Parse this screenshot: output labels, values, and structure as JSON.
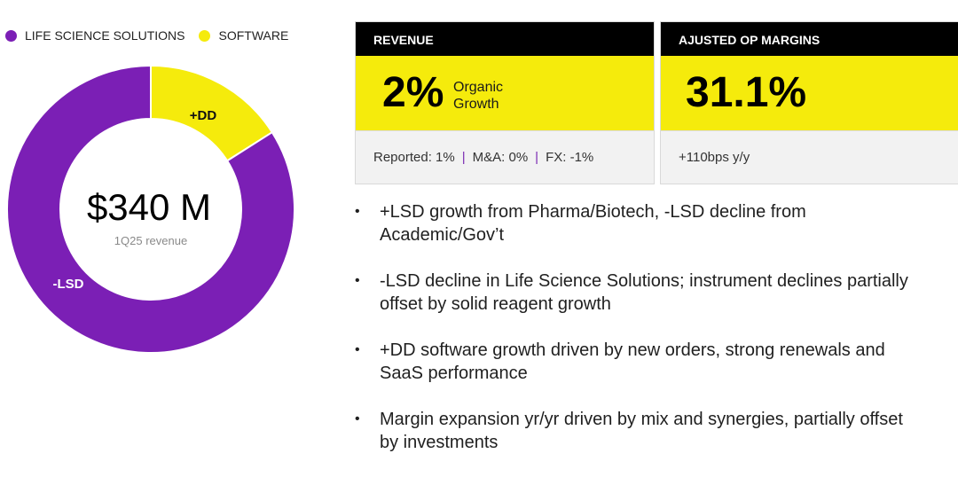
{
  "chart_data": {
    "type": "donut",
    "segments": [
      {
        "name": "LIFE SCIENCE SOLUTIONS",
        "label": "-LSD",
        "share": 0.84,
        "color": "#7b1fb5"
      },
      {
        "name": "SOFTWARE",
        "label": "+DD",
        "share": 0.16,
        "color": "#f5eb0c"
      }
    ],
    "center_value": "$340 M",
    "center_caption": "1Q25 revenue"
  },
  "revenue": {
    "header": "REVENUE",
    "value": "2%",
    "sub_line1": "Organic",
    "sub_line2": "Growth",
    "reported": "Reported: 1%",
    "ma": "M&A: 0%",
    "fx": "FX: -1%",
    "separator": "|"
  },
  "margins": {
    "header": "AJUSTED OP MARGINS",
    "value": "31.1%",
    "footer": "+110bps y/y"
  },
  "bullets": [
    {
      "line1": "+LSD growth from Pharma/Biotech, -LSD decline from",
      "line2": "Academic/Gov’t"
    },
    {
      "line1": "-LSD decline in Life Science Solutions; instrument declines partially",
      "line2": "offset by solid reagent growth"
    },
    {
      "line1": "+DD software growth driven by new orders, strong renewals and",
      "line2": "SaaS performance"
    },
    {
      "line1": "Margin expansion yr/yr driven by mix and synergies, partially offset",
      "line2": "by investments"
    }
  ],
  "bullet_glyph": "•"
}
